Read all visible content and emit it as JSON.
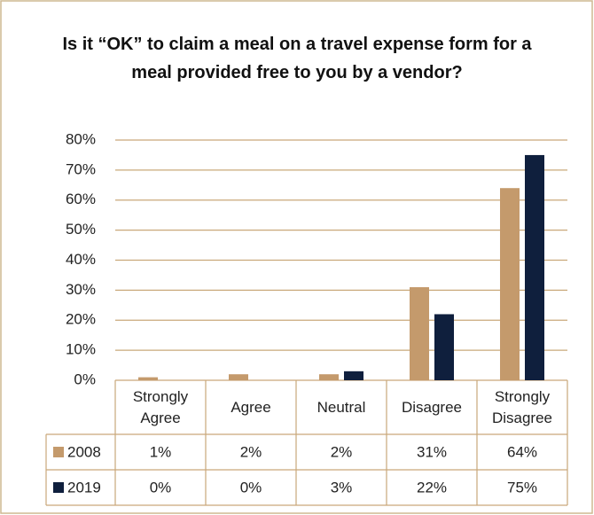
{
  "chart_data": {
    "type": "bar",
    "title": "Is it “OK” to claim a meal on a travel expense form for a meal provided free to you by a vendor?",
    "categories": [
      "Strongly Agree",
      "Agree",
      "Neutral",
      "Disagree",
      "Strongly Disagree"
    ],
    "series": [
      {
        "name": "2008",
        "color": "#c49a6c",
        "values": [
          1,
          2,
          2,
          31,
          64
        ],
        "value_labels": [
          "1%",
          "2%",
          "2%",
          "31%",
          "64%"
        ]
      },
      {
        "name": "2019",
        "color": "#0f1f3d",
        "values": [
          0,
          0,
          3,
          22,
          75
        ],
        "value_labels": [
          "0%",
          "0%",
          "3%",
          "22%",
          "75%"
        ]
      }
    ],
    "ylim": [
      0,
      80
    ],
    "yticks": [
      {
        "value": 0,
        "label": "0%"
      },
      {
        "value": 10,
        "label": "10%"
      },
      {
        "value": 20,
        "label": "20%"
      },
      {
        "value": 30,
        "label": "30%"
      },
      {
        "value": 40,
        "label": "40%"
      },
      {
        "value": 50,
        "label": "50%"
      },
      {
        "value": 60,
        "label": "60%"
      },
      {
        "value": 70,
        "label": "70%"
      },
      {
        "value": 80,
        "label": "80%"
      }
    ],
    "grid": true
  }
}
